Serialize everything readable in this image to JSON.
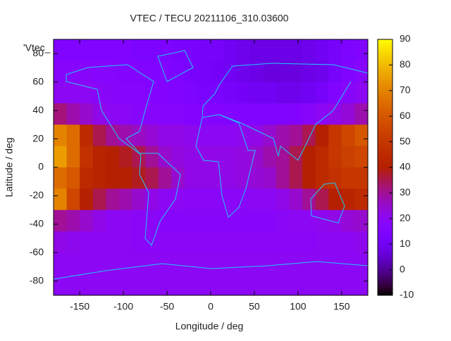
{
  "chart_data": {
    "type": "heatmap",
    "title": "VTEC / TECU 20211106_310.03600",
    "key": "'Vtec_",
    "x_label": "Longitude / deg",
    "y_label": "Latitude / deg",
    "xlim": [
      -180,
      180
    ],
    "ylim": [
      -90,
      90
    ],
    "xticks": [
      -150,
      -100,
      -50,
      0,
      50,
      100,
      150
    ],
    "yticks": [
      -80,
      -60,
      -40,
      -20,
      0,
      20,
      40,
      60,
      80
    ],
    "zlim": [
      -10,
      90
    ],
    "zticks": [
      -10,
      0,
      10,
      20,
      30,
      40,
      50,
      60,
      70,
      80,
      90
    ],
    "x": [
      -172.5,
      -157.5,
      -142.5,
      -127.5,
      -112.5,
      -97.5,
      -82.5,
      -67.5,
      -52.5,
      -37.5,
      -22.5,
      -7.5,
      7.5,
      22.5,
      37.5,
      52.5,
      67.5,
      82.5,
      97.5,
      112.5,
      127.5,
      142.5,
      157.5,
      172.5
    ],
    "y": [
      82.5,
      67.5,
      52.5,
      37.5,
      22.5,
      7.5,
      -7.5,
      -22.5,
      -37.5,
      -52.5,
      -67.5,
      -82.5
    ],
    "z": [
      [
        15,
        15,
        15,
        15,
        15,
        15,
        14,
        14,
        14,
        13,
        13,
        12,
        12,
        10,
        9,
        8,
        8,
        8,
        8,
        9,
        10,
        12,
        14,
        15
      ],
      [
        18,
        18,
        18,
        17,
        17,
        16,
        16,
        15,
        15,
        14,
        13,
        12,
        11,
        10,
        9,
        8,
        7,
        7,
        7,
        8,
        9,
        12,
        15,
        17
      ],
      [
        20,
        20,
        20,
        19,
        18,
        17,
        17,
        16,
        16,
        15,
        14,
        13,
        13,
        12,
        11,
        10,
        10,
        9,
        9,
        10,
        12,
        15,
        18,
        20
      ],
      [
        32,
        28,
        25,
        22,
        20,
        19,
        18,
        18,
        17,
        17,
        16,
        16,
        16,
        15,
        15,
        15,
        15,
        15,
        16,
        18,
        20,
        22,
        24,
        28
      ],
      [
        70,
        65,
        45,
        35,
        30,
        28,
        26,
        24,
        22,
        22,
        21,
        20,
        20,
        20,
        21,
        22,
        25,
        28,
        30,
        35,
        40,
        50,
        55,
        60
      ],
      [
        75,
        65,
        48,
        42,
        40,
        38,
        35,
        30,
        25,
        23,
        22,
        22,
        22,
        22,
        23,
        25,
        28,
        30,
        35,
        40,
        45,
        50,
        53,
        55
      ],
      [
        65,
        60,
        45,
        42,
        40,
        40,
        38,
        35,
        30,
        25,
        22,
        22,
        22,
        22,
        23,
        24,
        25,
        30,
        35,
        40,
        45,
        48,
        50,
        50
      ],
      [
        70,
        55,
        40,
        35,
        30,
        28,
        25,
        22,
        20,
        20,
        19,
        19,
        19,
        19,
        19,
        20,
        20,
        22,
        25,
        30,
        35,
        40,
        42,
        45
      ],
      [
        30,
        28,
        25,
        22,
        20,
        20,
        19,
        19,
        18,
        18,
        18,
        18,
        18,
        18,
        18,
        18,
        18,
        19,
        20,
        20,
        21,
        22,
        24,
        25
      ],
      [
        22,
        21,
        20,
        20,
        20,
        20,
        19,
        19,
        19,
        19,
        19,
        19,
        19,
        19,
        19,
        19,
        19,
        19,
        19,
        19,
        20,
        20,
        20,
        21
      ],
      [
        20,
        20,
        20,
        20,
        20,
        20,
        20,
        20,
        20,
        20,
        20,
        20,
        20,
        20,
        20,
        20,
        20,
        20,
        20,
        20,
        20,
        20,
        20,
        20
      ],
      [
        20,
        20,
        20,
        20,
        20,
        20,
        20,
        20,
        20,
        20,
        20,
        20,
        20,
        20,
        20,
        20,
        20,
        20,
        20,
        20,
        20,
        20,
        20,
        20
      ]
    ]
  }
}
